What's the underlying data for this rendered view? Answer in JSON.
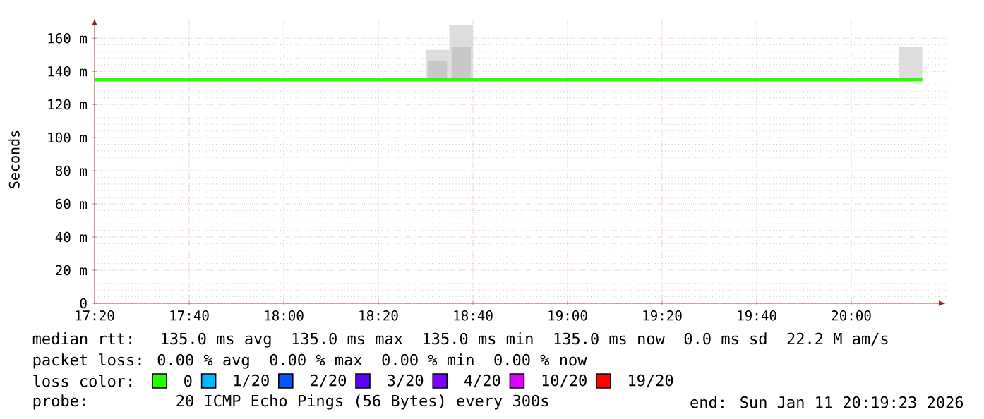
{
  "chart_data": {
    "type": "line",
    "ylabel": "Seconds",
    "xlim": [
      17.3333,
      20.3333
    ],
    "ylim": [
      0,
      172
    ],
    "xticks": [
      {
        "value": 17.3333,
        "label": "17:20"
      },
      {
        "value": 17.6667,
        "label": "17:40"
      },
      {
        "value": 18,
        "label": "18:00"
      },
      {
        "value": 18.3333,
        "label": "18:20"
      },
      {
        "value": 18.6667,
        "label": "18:40"
      },
      {
        "value": 19,
        "label": "19:00"
      },
      {
        "value": 19.3333,
        "label": "19:20"
      },
      {
        "value": 19.6667,
        "label": "19:40"
      },
      {
        "value": 20,
        "label": "20:00"
      }
    ],
    "yticks": [
      0,
      {
        "value": 20,
        "label": "20 m"
      },
      {
        "value": 40,
        "label": "40 m"
      },
      {
        "value": 60,
        "label": "60 m"
      },
      {
        "value": 80,
        "label": "80 m"
      },
      {
        "value": 100,
        "label": "100 m"
      },
      {
        "value": 120,
        "label": "120 m"
      },
      {
        "value": 140,
        "label": "140 m"
      },
      {
        "value": 160,
        "label": "160 m"
      }
    ],
    "grid": true,
    "legend": "bottom",
    "legend_title": "loss color:",
    "series": [
      {
        "type": "bar",
        "color": "#dddddd",
        "x": [
          18.5417,
          18.625,
          20.2083
        ],
        "base": [
          135,
          135,
          135
        ],
        "values": [
          18,
          33,
          20
        ]
      },
      {
        "type": "bar",
        "color": "#c8c8c8",
        "x": [
          18.5417,
          18.625
        ],
        "base": [
          135,
          135
        ],
        "values": [
          11,
          20
        ]
      },
      {
        "name": "0",
        "color": "#26ff00",
        "x": [
          17.3333,
          20.25
        ],
        "values": [
          135,
          135
        ]
      },
      {
        "name": "1/20",
        "color": "#00b8ff"
      },
      {
        "name": "2/20",
        "color": "#0059ff"
      },
      {
        "name": "3/20",
        "color": "#5e00ff"
      },
      {
        "name": "4/20",
        "color": "#7e00ff"
      },
      {
        "name": "10/20",
        "color": "#dd00ff"
      },
      {
        "name": "19/20",
        "color": "#ff0000"
      }
    ],
    "annotations": [
      "median rtt:  135.0 ms avg  135.0 ms max  135.0 ms min  135.0 ms now  0.0 ms sd  22.2 M am/s",
      "packet loss: 0.00 % avg  0.00 % max  0.00 % min  0.00 % now",
      "probe:       20 ICMP Echo Pings (56 Bytes) every 300s",
      "end: Sun Jan 11 20:19:23 2026"
    ]
  }
}
